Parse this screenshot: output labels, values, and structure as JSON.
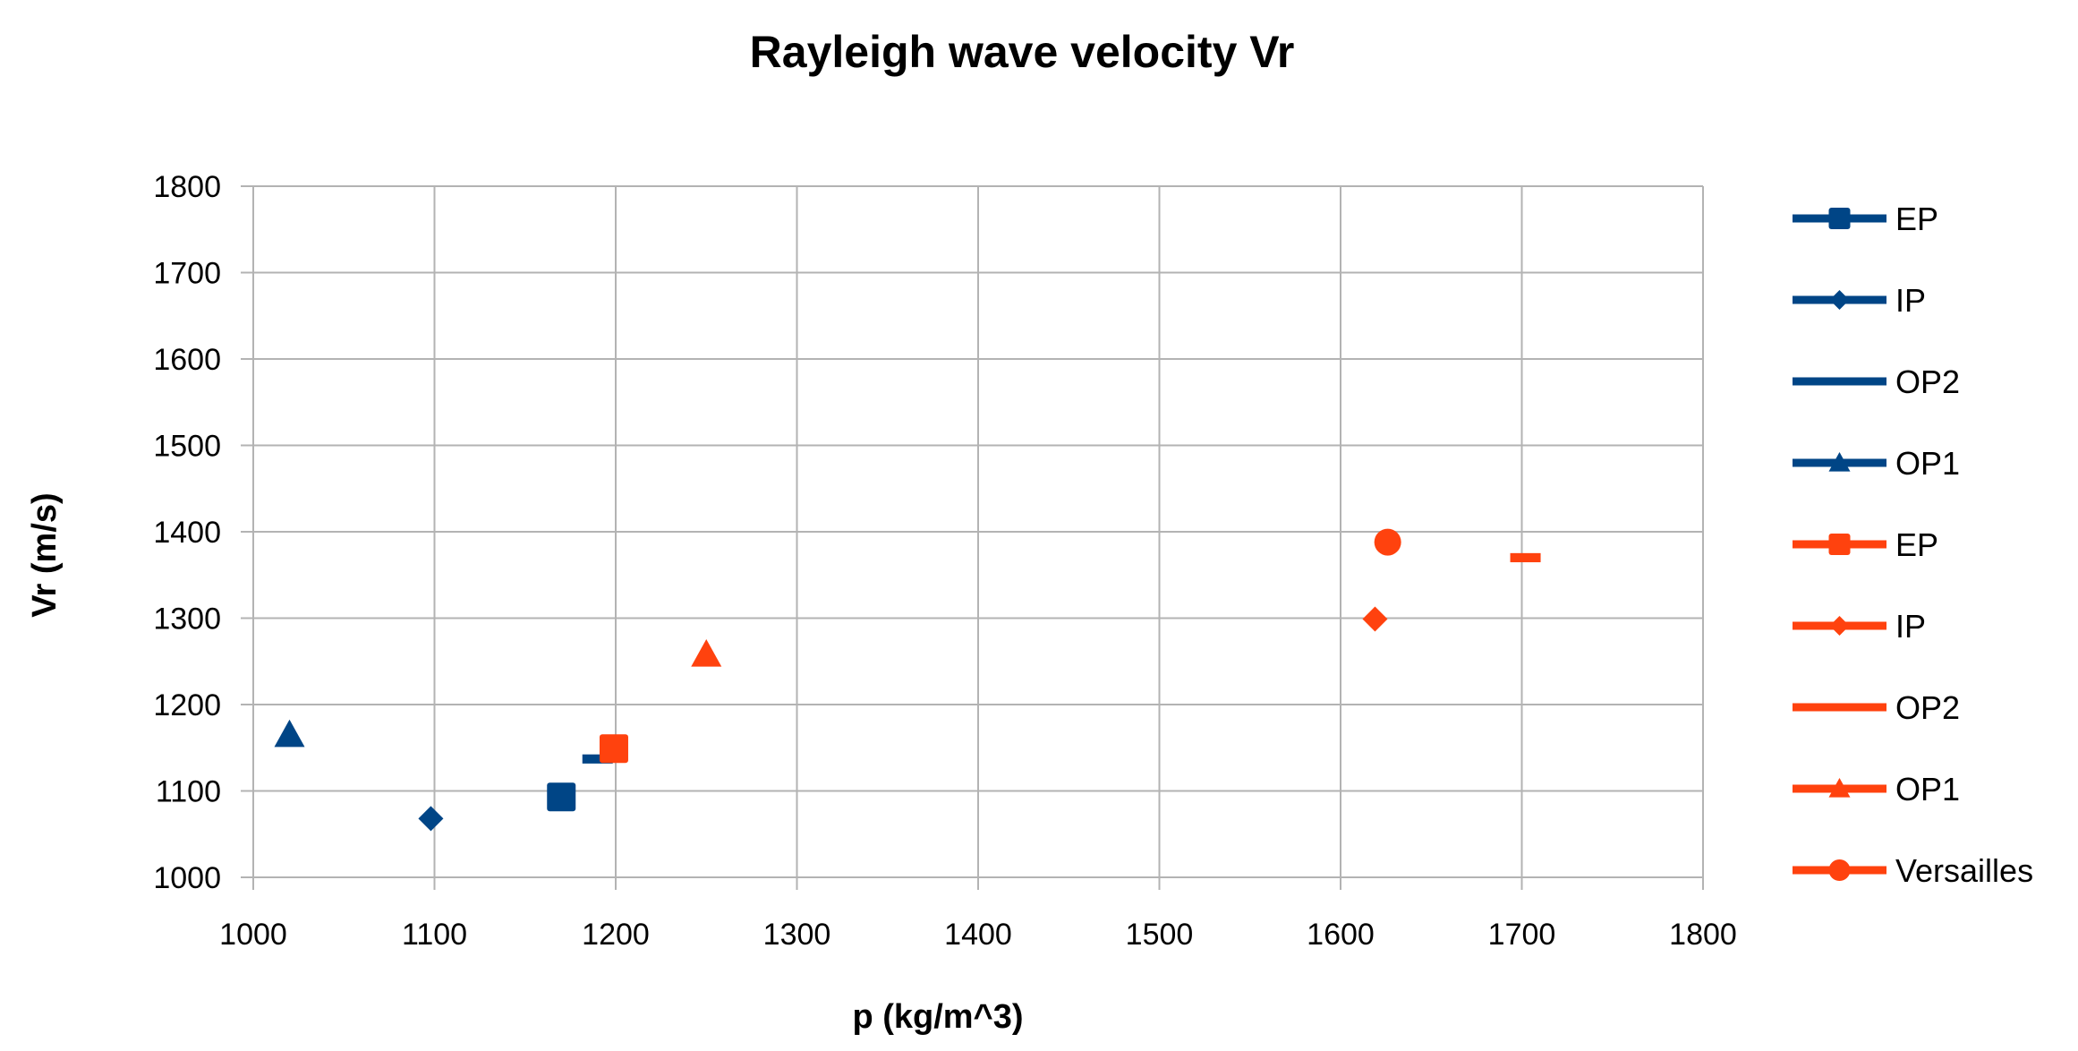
{
  "colors": {
    "blue": "#004586",
    "orange": "#ff420e",
    "grid": "#b3b3b3"
  },
  "chart_data": {
    "type": "scatter",
    "title": "Rayleigh wave velocity Vr",
    "xlabel": "p (kg/m^3)",
    "ylabel": "Vr (m/s)",
    "xlim": [
      1000,
      1800
    ],
    "ylim": [
      1000,
      1800
    ],
    "xticks": [
      "1000",
      "1100",
      "1200",
      "1300",
      "1400",
      "1500",
      "1600",
      "1700",
      "1800"
    ],
    "yticks": [
      "1000",
      "1100",
      "1200",
      "1300",
      "1400",
      "1500",
      "1600",
      "1700",
      "1800"
    ],
    "grid": true,
    "legend_position": "right",
    "series": [
      {
        "name": "EP",
        "color": "#004586",
        "marker": "square",
        "points": [
          [
            1170,
            1093
          ]
        ]
      },
      {
        "name": "IP",
        "color": "#004586",
        "marker": "diamond",
        "points": [
          [
            1098,
            1068
          ]
        ]
      },
      {
        "name": "OP2",
        "color": "#004586",
        "marker": "dash",
        "points": [
          [
            1190,
            1137
          ]
        ]
      },
      {
        "name": "OP1",
        "color": "#004586",
        "marker": "triangle",
        "points": [
          [
            1020,
            1165
          ]
        ]
      },
      {
        "name": "EP",
        "color": "#ff420e",
        "marker": "square",
        "points": [
          [
            1199,
            1149
          ]
        ]
      },
      {
        "name": "IP",
        "color": "#ff420e",
        "marker": "diamond",
        "points": [
          [
            1619,
            1299
          ]
        ]
      },
      {
        "name": "OP2",
        "color": "#ff420e",
        "marker": "dash",
        "points": [
          [
            1702,
            1370
          ]
        ]
      },
      {
        "name": "OP1",
        "color": "#ff420e",
        "marker": "triangle",
        "points": [
          [
            1250,
            1258
          ]
        ]
      },
      {
        "name": "Versailles",
        "color": "#ff420e",
        "marker": "circle",
        "points": [
          [
            1626,
            1388
          ]
        ]
      }
    ]
  }
}
